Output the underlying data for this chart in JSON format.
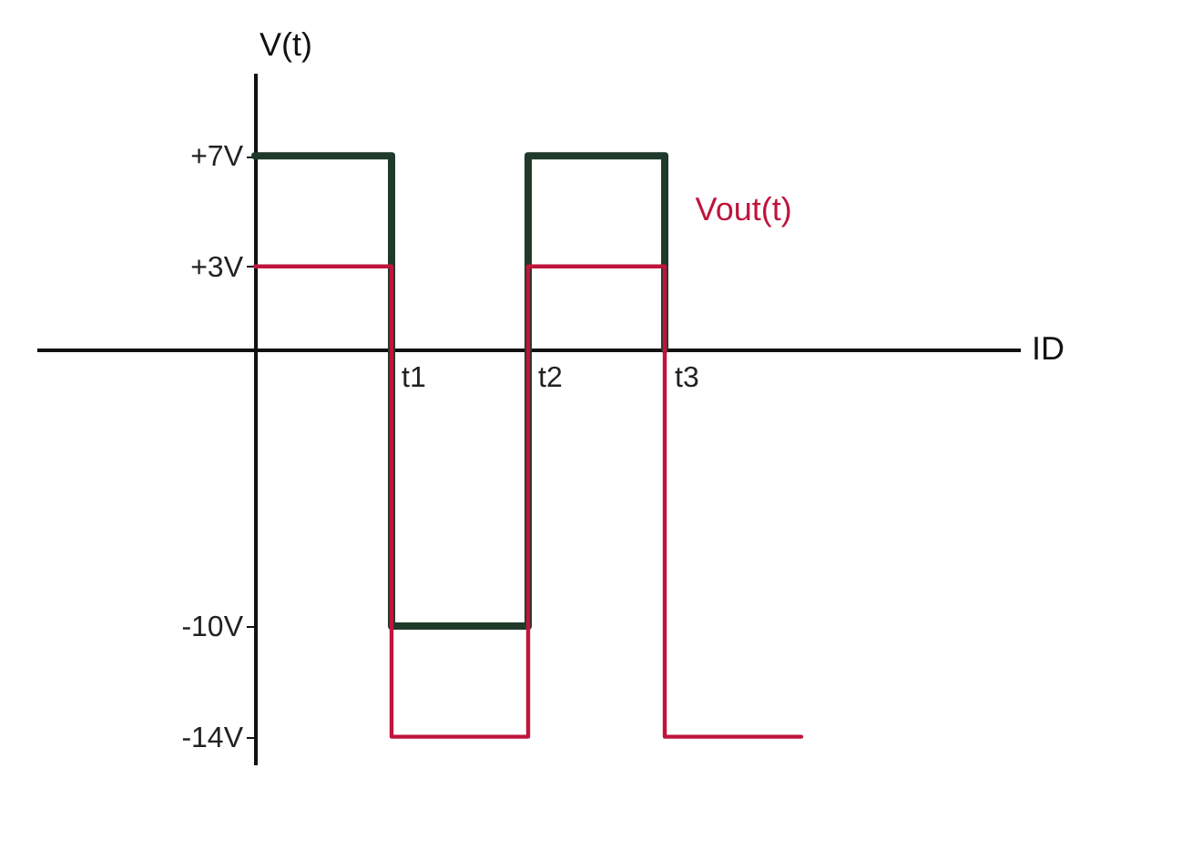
{
  "chart_data": {
    "type": "step",
    "xlabel": "ID",
    "ylabel": "V(t)",
    "categories": [
      null,
      "t1",
      "t2",
      "t3",
      null
    ],
    "ylim": [
      -15,
      10
    ],
    "yticks": [
      {
        "value": 7,
        "label": "+7V"
      },
      {
        "value": 3,
        "label": "+3V"
      },
      {
        "value": -10,
        "label": "-10V"
      },
      {
        "value": -14,
        "label": "-14V"
      }
    ],
    "series": [
      {
        "color": "#1f3a2a",
        "values": [
          7,
          -10,
          7,
          0,
          null
        ]
      },
      {
        "color": "#c0143c",
        "values": [
          3,
          -14,
          3,
          -14,
          -14
        ]
      }
    ],
    "annotations": [
      "Vout(t)"
    ],
    "grid": false,
    "legend": false
  }
}
